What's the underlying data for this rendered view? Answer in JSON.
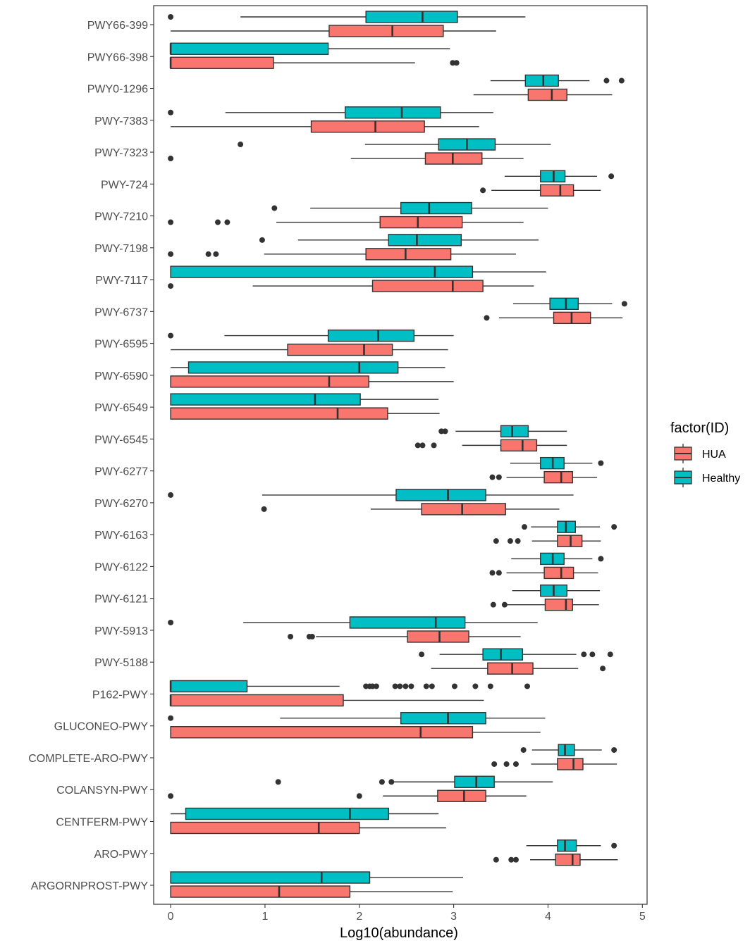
{
  "colors": {
    "HUA": "#F8766D",
    "Healthy": "#00BFC4",
    "outline": "#333333",
    "outlier": "#333333"
  },
  "chart_data": {
    "type": "boxplot",
    "orientation": "horizontal",
    "xlabel": "Log10(abundance)",
    "xlim": [
      -0.18,
      5.05
    ],
    "xticks": [
      0,
      1,
      2,
      3,
      4,
      5
    ],
    "xtick_labels": [
      "0",
      "1",
      "2",
      "3",
      "4",
      "5"
    ],
    "legend": {
      "title": "factor(ID)",
      "position": "right",
      "entries": [
        "HUA",
        "Healthy"
      ]
    },
    "series_names": [
      "HUA",
      "Healthy"
    ],
    "categories": [
      "PWY66-399",
      "PWY66-398",
      "PWY0-1296",
      "PWY-7383",
      "PWY-7323",
      "PWY-724",
      "PWY-7210",
      "PWY-7198",
      "PWY-7117",
      "PWY-6737",
      "PWY-6595",
      "PWY-6590",
      "PWY-6549",
      "PWY-6545",
      "PWY-6277",
      "PWY-6270",
      "PWY-6163",
      "PWY-6122",
      "PWY-6121",
      "PWY-5913",
      "PWY-5188",
      "P162-PWY",
      "GLUCONEO-PWY",
      "COMPLETE-ARO-PWY",
      "COLANSYN-PWY",
      "CENTFERM-PWY",
      "ARO-PWY",
      "ARGORNPROST-PWY"
    ],
    "boxes": [
      {
        "HUA": {
          "whiskerLow": 0,
          "q1": 1.68,
          "median": 2.35,
          "q3": 2.89,
          "whiskerHigh": 3.45,
          "outliers": []
        },
        "Healthy": {
          "whiskerLow": 0.74,
          "q1": 2.07,
          "median": 2.67,
          "q3": 3.04,
          "whiskerHigh": 3.76,
          "outliers": [
            0
          ]
        }
      },
      {
        "HUA": {
          "whiskerLow": 0,
          "q1": 0,
          "median": 0,
          "q3": 1.09,
          "whiskerHigh": 2.59,
          "outliers": [
            2.99,
            3.03
          ]
        },
        "Healthy": {
          "whiskerLow": 0,
          "q1": 0,
          "median": 0,
          "q3": 1.67,
          "whiskerHigh": 2.96,
          "outliers": []
        }
      },
      {
        "HUA": {
          "whiskerLow": 3.21,
          "q1": 3.79,
          "median": 4.04,
          "q3": 4.2,
          "whiskerHigh": 4.68,
          "outliers": []
        },
        "Healthy": {
          "whiskerLow": 3.39,
          "q1": 3.76,
          "median": 3.95,
          "q3": 4.11,
          "whiskerHigh": 4.44,
          "outliers": [
            4.62,
            4.78
          ]
        }
      },
      {
        "HUA": {
          "whiskerLow": 0,
          "q1": 1.49,
          "median": 2.17,
          "q3": 2.69,
          "whiskerHigh": 3.27,
          "outliers": []
        },
        "Healthy": {
          "whiskerLow": 0.58,
          "q1": 1.85,
          "median": 2.45,
          "q3": 2.86,
          "whiskerHigh": 3.42,
          "outliers": [
            0
          ]
        }
      },
      {
        "HUA": {
          "whiskerLow": 1.91,
          "q1": 2.7,
          "median": 2.99,
          "q3": 3.3,
          "whiskerHigh": 3.74,
          "outliers": [
            0
          ]
        },
        "Healthy": {
          "whiskerLow": 2.06,
          "q1": 2.84,
          "median": 3.14,
          "q3": 3.44,
          "whiskerHigh": 4.03,
          "outliers": [
            0.74
          ]
        }
      },
      {
        "HUA": {
          "whiskerLow": 3.4,
          "q1": 3.92,
          "median": 4.13,
          "q3": 4.27,
          "whiskerHigh": 4.56,
          "outliers": [
            3.31
          ]
        },
        "Healthy": {
          "whiskerLow": 3.54,
          "q1": 3.92,
          "median": 4.06,
          "q3": 4.18,
          "whiskerHigh": 4.52,
          "outliers": [
            4.67
          ]
        }
      },
      {
        "HUA": {
          "whiskerLow": 1.12,
          "q1": 2.22,
          "median": 2.62,
          "q3": 3.09,
          "whiskerHigh": 3.74,
          "outliers": [
            0,
            0.5,
            0.6
          ]
        },
        "Healthy": {
          "whiskerLow": 1.48,
          "q1": 2.44,
          "median": 2.74,
          "q3": 3.19,
          "whiskerHigh": 4.0,
          "outliers": [
            1.1
          ]
        }
      },
      {
        "HUA": {
          "whiskerLow": 0.99,
          "q1": 2.07,
          "median": 2.49,
          "q3": 2.97,
          "whiskerHigh": 3.66,
          "outliers": [
            0,
            0.4,
            0.48
          ]
        },
        "Healthy": {
          "whiskerLow": 1.35,
          "q1": 2.31,
          "median": 2.61,
          "q3": 3.08,
          "whiskerHigh": 3.9,
          "outliers": [
            0.97
          ]
        }
      },
      {
        "HUA": {
          "whiskerLow": 0.87,
          "q1": 2.14,
          "median": 2.99,
          "q3": 3.31,
          "whiskerHigh": 3.85,
          "outliers": [
            0
          ]
        },
        "Healthy": {
          "whiskerLow": 0,
          "q1": 0,
          "median": 2.8,
          "q3": 3.2,
          "whiskerHigh": 3.98,
          "outliers": []
        }
      },
      {
        "HUA": {
          "whiskerLow": 3.48,
          "q1": 4.06,
          "median": 4.25,
          "q3": 4.45,
          "whiskerHigh": 4.79,
          "outliers": [
            3.35
          ]
        },
        "Healthy": {
          "whiskerLow": 3.63,
          "q1": 4.02,
          "median": 4.19,
          "q3": 4.32,
          "whiskerHigh": 4.68,
          "outliers": [
            4.81
          ]
        }
      },
      {
        "HUA": {
          "whiskerLow": 0,
          "q1": 1.24,
          "median": 2.05,
          "q3": 2.35,
          "whiskerHigh": 2.94,
          "outliers": []
        },
        "Healthy": {
          "whiskerLow": 0.57,
          "q1": 1.67,
          "median": 2.2,
          "q3": 2.58,
          "whiskerHigh": 3.0,
          "outliers": [
            0
          ]
        }
      },
      {
        "HUA": {
          "whiskerLow": 0,
          "q1": 0,
          "median": 1.68,
          "q3": 2.1,
          "whiskerHigh": 3.0,
          "outliers": []
        },
        "Healthy": {
          "whiskerLow": 0,
          "q1": 0.19,
          "median": 2.0,
          "q3": 2.41,
          "whiskerHigh": 2.91,
          "outliers": []
        }
      },
      {
        "HUA": {
          "whiskerLow": 0,
          "q1": 0,
          "median": 1.77,
          "q3": 2.3,
          "whiskerHigh": 2.85,
          "outliers": []
        },
        "Healthy": {
          "whiskerLow": 0,
          "q1": 0,
          "median": 1.53,
          "q3": 2.01,
          "whiskerHigh": 2.84,
          "outliers": []
        }
      },
      {
        "HUA": {
          "whiskerLow": 3.09,
          "q1": 3.5,
          "median": 3.73,
          "q3": 3.88,
          "whiskerHigh": 4.2,
          "outliers": [
            2.62,
            2.67,
            2.79
          ]
        },
        "Healthy": {
          "whiskerLow": 3.02,
          "q1": 3.5,
          "median": 3.62,
          "q3": 3.79,
          "whiskerHigh": 4.2,
          "outliers": [
            2.87,
            2.91
          ]
        }
      },
      {
        "HUA": {
          "whiskerLow": 3.56,
          "q1": 3.96,
          "median": 4.14,
          "q3": 4.26,
          "whiskerHigh": 4.52,
          "outliers": [
            3.41,
            3.48
          ]
        },
        "Healthy": {
          "whiskerLow": 3.6,
          "q1": 3.92,
          "median": 4.05,
          "q3": 4.17,
          "whiskerHigh": 4.47,
          "outliers": [
            4.56
          ]
        }
      },
      {
        "HUA": {
          "whiskerLow": 2.12,
          "q1": 2.66,
          "median": 3.09,
          "q3": 3.55,
          "whiskerHigh": 4.12,
          "outliers": [
            0.99
          ]
        },
        "Healthy": {
          "whiskerLow": 0.97,
          "q1": 2.39,
          "median": 2.94,
          "q3": 3.34,
          "whiskerHigh": 4.27,
          "outliers": [
            0
          ]
        }
      },
      {
        "HUA": {
          "whiskerLow": 3.83,
          "q1": 4.1,
          "median": 4.24,
          "q3": 4.36,
          "whiskerHigh": 4.56,
          "outliers": [
            3.45,
            3.6,
            3.68
          ]
        },
        "Healthy": {
          "whiskerLow": 3.82,
          "q1": 4.1,
          "median": 4.19,
          "q3": 4.29,
          "whiskerHigh": 4.55,
          "outliers": [
            3.75,
            4.7
          ]
        }
      },
      {
        "HUA": {
          "whiskerLow": 3.56,
          "q1": 3.96,
          "median": 4.14,
          "q3": 4.27,
          "whiskerHigh": 4.53,
          "outliers": [
            3.41,
            3.48
          ]
        },
        "Healthy": {
          "whiskerLow": 3.61,
          "q1": 3.92,
          "median": 4.05,
          "q3": 4.17,
          "whiskerHigh": 4.47,
          "outliers": [
            4.56
          ]
        }
      },
      {
        "HUA": {
          "whiskerLow": 3.56,
          "q1": 3.97,
          "median": 4.19,
          "q3": 4.26,
          "whiskerHigh": 4.54,
          "outliers": [
            3.42,
            3.54
          ]
        },
        "Healthy": {
          "whiskerLow": 3.62,
          "q1": 3.92,
          "median": 4.06,
          "q3": 4.2,
          "whiskerHigh": 4.55,
          "outliers": []
        }
      },
      {
        "HUA": {
          "whiskerLow": 1.54,
          "q1": 2.51,
          "median": 2.85,
          "q3": 3.16,
          "whiskerHigh": 3.71,
          "outliers": [
            1.27,
            1.47,
            1.5
          ]
        },
        "Healthy": {
          "whiskerLow": 0.77,
          "q1": 1.9,
          "median": 2.81,
          "q3": 3.12,
          "whiskerHigh": 3.89,
          "outliers": [
            0
          ]
        }
      },
      {
        "HUA": {
          "whiskerLow": 2.76,
          "q1": 3.36,
          "median": 3.62,
          "q3": 3.84,
          "whiskerHigh": 4.32,
          "outliers": [
            4.58
          ]
        },
        "Healthy": {
          "whiskerLow": 2.85,
          "q1": 3.31,
          "median": 3.5,
          "q3": 3.73,
          "whiskerHigh": 4.3,
          "outliers": [
            2.66,
            4.38,
            4.47,
            4.66
          ]
        }
      },
      {
        "HUA": {
          "whiskerLow": 0,
          "q1": 0,
          "median": 0,
          "q3": 1.83,
          "whiskerHigh": 3.32,
          "outliers": []
        },
        "Healthy": {
          "whiskerLow": 0,
          "q1": 0,
          "median": 0,
          "q3": 0.81,
          "whiskerHigh": 1.79,
          "outliers": [
            2.07,
            2.11,
            2.14,
            2.18,
            2.38,
            2.43,
            2.49,
            2.55,
            2.71,
            2.77,
            3.01,
            3.23,
            3.39,
            3.78
          ]
        }
      },
      {
        "HUA": {
          "whiskerLow": 0,
          "q1": 0,
          "median": 2.65,
          "q3": 3.2,
          "whiskerHigh": 3.92,
          "outliers": []
        },
        "Healthy": {
          "whiskerLow": 1.16,
          "q1": 2.44,
          "median": 2.94,
          "q3": 3.34,
          "whiskerHigh": 3.97,
          "outliers": [
            0
          ]
        }
      },
      {
        "HUA": {
          "whiskerLow": 3.82,
          "q1": 4.1,
          "median": 4.27,
          "q3": 4.37,
          "whiskerHigh": 4.73,
          "outliers": [
            3.43,
            3.56,
            3.66
          ]
        },
        "Healthy": {
          "whiskerLow": 3.83,
          "q1": 4.11,
          "median": 4.18,
          "q3": 4.28,
          "whiskerHigh": 4.57,
          "outliers": [
            3.74,
            4.7
          ]
        }
      },
      {
        "HUA": {
          "whiskerLow": 2.25,
          "q1": 2.83,
          "median": 3.11,
          "q3": 3.34,
          "whiskerHigh": 3.77,
          "outliers": [
            0,
            2.0
          ]
        },
        "Healthy": {
          "whiskerLow": 2.34,
          "q1": 3.01,
          "median": 3.24,
          "q3": 3.43,
          "whiskerHigh": 4.05,
          "outliers": [
            1.14,
            2.24,
            2.34
          ]
        }
      },
      {
        "HUA": {
          "whiskerLow": 0,
          "q1": 0,
          "median": 1.57,
          "q3": 2.0,
          "whiskerHigh": 2.92,
          "outliers": []
        },
        "Healthy": {
          "whiskerLow": 0,
          "q1": 0.16,
          "median": 1.9,
          "q3": 2.31,
          "whiskerHigh": 2.84,
          "outliers": []
        }
      },
      {
        "HUA": {
          "whiskerLow": 3.81,
          "q1": 4.08,
          "median": 4.26,
          "q3": 4.34,
          "whiskerHigh": 4.74,
          "outliers": [
            3.45,
            3.61,
            3.66
          ]
        },
        "Healthy": {
          "whiskerLow": 3.77,
          "q1": 4.1,
          "median": 4.18,
          "q3": 4.3,
          "whiskerHigh": 4.56,
          "outliers": [
            4.7
          ]
        }
      },
      {
        "HUA": {
          "whiskerLow": 0,
          "q1": 0,
          "median": 1.15,
          "q3": 1.9,
          "whiskerHigh": 2.99,
          "outliers": []
        },
        "Healthy": {
          "whiskerLow": 0,
          "q1": 0,
          "median": 1.6,
          "q3": 2.11,
          "whiskerHigh": 3.1,
          "outliers": []
        }
      }
    ]
  }
}
